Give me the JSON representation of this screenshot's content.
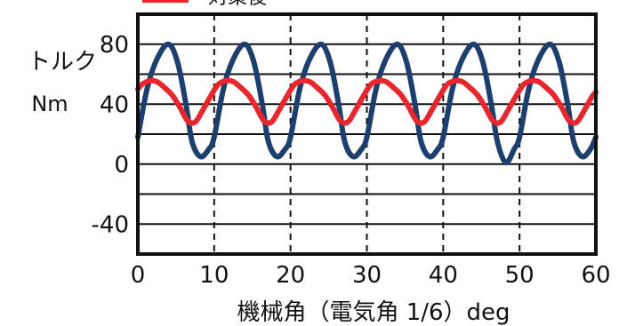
{
  "chart_data": {
    "type": "line",
    "ylabel_line1": "トルク",
    "ylabel_line2": "Nm",
    "xlabel": "機械角（電気角 1/6）deg",
    "xlim": [
      0,
      60
    ],
    "ylim": [
      -60,
      100
    ],
    "x_ticks": [
      0,
      10,
      20,
      30,
      40,
      50,
      60
    ],
    "y_ticks": [
      80,
      40,
      0,
      -40
    ],
    "hgrid_values": [
      80,
      60,
      40,
      20,
      0,
      -20,
      -40
    ],
    "vgrid_dashed_values": [
      10,
      20,
      30,
      40,
      50
    ],
    "grid": true,
    "legend": {
      "placement": "top-left",
      "entries": [
        {
          "label": "対策後",
          "color": "#e8262d"
        }
      ]
    },
    "series": [
      {
        "name": "",
        "color": "#1d3f6e",
        "x": [
          0,
          1.2,
          2.5,
          4,
          5.2,
          6.3,
          7.1,
          8.2,
          9.3,
          10,
          11.2,
          12.5,
          14,
          15.2,
          16.3,
          17.1,
          18.2,
          19.3,
          20,
          21.2,
          22.5,
          24,
          25.2,
          26.3,
          27.1,
          28.2,
          29.3,
          30,
          31.2,
          32.5,
          34,
          35.2,
          36.3,
          37.1,
          38.2,
          39.3,
          40,
          41.2,
          42.5,
          44,
          45.2,
          46.3,
          47.1,
          48.2,
          49.3,
          50,
          51.2,
          52.5,
          54,
          55.2,
          56.3,
          57.1,
          58.2,
          59.3,
          60
        ],
        "y": [
          18,
          50,
          70,
          80,
          68,
          40,
          15,
          5,
          10,
          18,
          50,
          70,
          80,
          68,
          40,
          15,
          5,
          10,
          18,
          50,
          70,
          80,
          68,
          40,
          15,
          5,
          10,
          18,
          50,
          70,
          80,
          68,
          40,
          15,
          5,
          10,
          18,
          50,
          70,
          80,
          68,
          40,
          15,
          1,
          10,
          18,
          50,
          70,
          80,
          68,
          40,
          15,
          5,
          10,
          18
        ]
      },
      {
        "name": "対策後",
        "color": "#e8262d",
        "x": [
          0,
          0.5,
          1.5,
          2.5,
          3.5,
          4.5,
          5.5,
          6.5,
          7.5,
          8.5,
          9.5,
          10.5,
          11.5,
          12.5,
          13.5,
          14.5,
          15.5,
          16.5,
          17.5,
          18.5,
          19.5,
          20.5,
          21.5,
          22.5,
          23.5,
          24.5,
          25.5,
          26.5,
          27.5,
          28.5,
          29.5,
          30.5,
          31.5,
          32.5,
          33.5,
          34.5,
          35.5,
          36.5,
          37.5,
          38.5,
          39.5,
          40.5,
          41.5,
          42.5,
          43.5,
          44.5,
          45.5,
          46.5,
          47.5,
          48.5,
          49.5,
          50.5,
          51.5,
          52.5,
          53.5,
          54.5,
          55.5,
          56.5,
          57.5,
          58.5,
          59.5,
          60
        ],
        "y": [
          50,
          53,
          55.5,
          55,
          51,
          46,
          38,
          29,
          28,
          36,
          45,
          53,
          55.5,
          55,
          51,
          46,
          38,
          29,
          28,
          36,
          45,
          53,
          55.5,
          55,
          51,
          46,
          38,
          29,
          28,
          36,
          45,
          53,
          55.5,
          55,
          51,
          46,
          38,
          29,
          28,
          36,
          45,
          53,
          55.5,
          55,
          51,
          46,
          38,
          29,
          28,
          36,
          45,
          53,
          55.5,
          55,
          51,
          46,
          38,
          29,
          28,
          36,
          45,
          48
        ]
      }
    ]
  }
}
